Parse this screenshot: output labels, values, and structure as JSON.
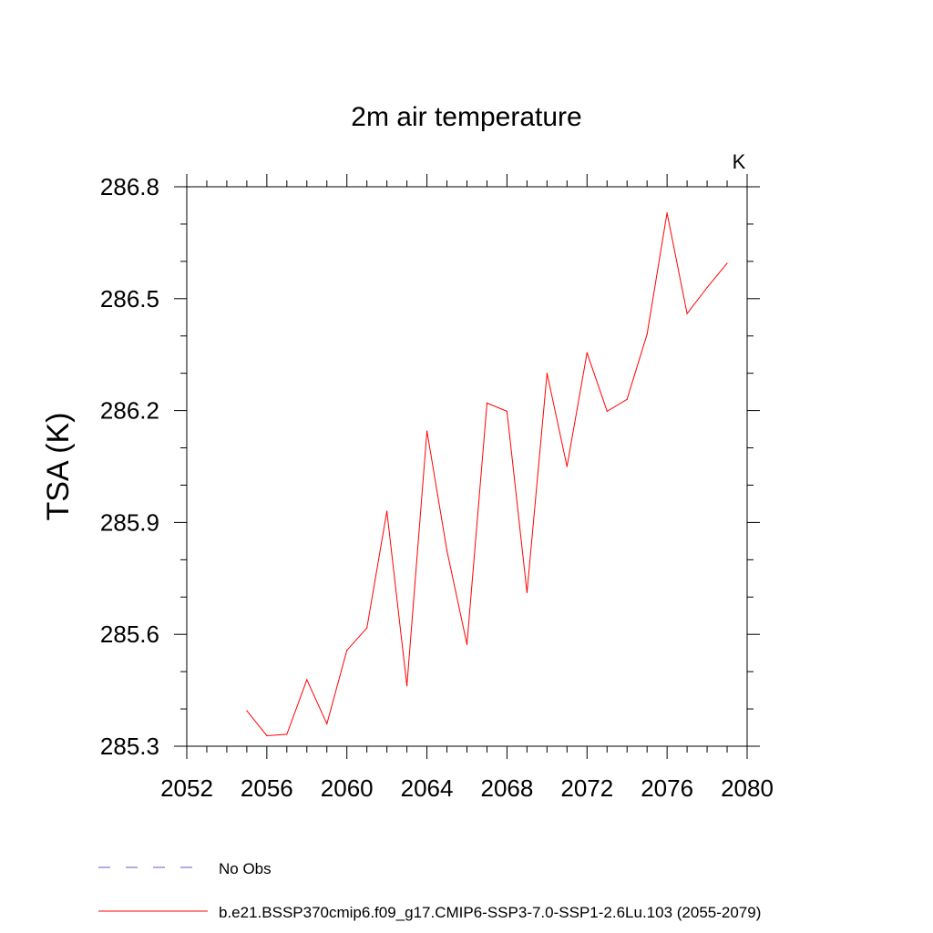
{
  "chart_data": {
    "type": "line",
    "title": "2m air temperature",
    "units": "K",
    "xlabel": "",
    "ylabel": "TSA  (K)",
    "xlim": [
      2052,
      2080
    ],
    "ylim": [
      285.3,
      286.8
    ],
    "x_ticks": [
      2052,
      2056,
      2060,
      2064,
      2068,
      2072,
      2076,
      2080
    ],
    "x_tick_labels": [
      "2052",
      "2056",
      "2060",
      "2064",
      "2068",
      "2072",
      "2076",
      "2080"
    ],
    "x_minor_step": 1,
    "y_ticks": [
      285.3,
      285.6,
      285.9,
      286.2,
      286.5,
      286.8
    ],
    "y_tick_labels": [
      "285.3",
      "285.6",
      "285.9",
      "286.2",
      "286.5",
      "286.8"
    ],
    "y_minor_step": 0.1,
    "grid": false,
    "series": [
      {
        "name": "b.e21.BSSP370cmip6.f09_g17.CMIP6-SSP3-7.0-SSP1-2.6Lu.103 (2055-2079)",
        "color": "#ff0000",
        "dash": "solid",
        "x": [
          2055,
          2056,
          2057,
          2058,
          2059,
          2060,
          2061,
          2062,
          2063,
          2064,
          2065,
          2066,
          2067,
          2068,
          2069,
          2070,
          2071,
          2072,
          2073,
          2074,
          2075,
          2076,
          2077,
          2078,
          2079
        ],
        "y": [
          285.395,
          285.328,
          285.332,
          285.478,
          285.36,
          285.557,
          285.617,
          285.93,
          285.462,
          286.145,
          285.825,
          285.573,
          286.22,
          286.198,
          285.712,
          286.3,
          286.05,
          286.355,
          286.198,
          286.23,
          286.405,
          286.73,
          286.46,
          286.53,
          286.595
        ]
      }
    ],
    "legend": [
      {
        "label": "No Obs",
        "color": "#6a5acd",
        "dash": "dashed"
      },
      {
        "label": "b.e21.BSSP370cmip6.f09_g17.CMIP6-SSP3-7.0-SSP1-2.6Lu.103 (2055-2079)",
        "color": "#ff0000",
        "dash": "solid"
      }
    ],
    "legend_position": "bottom-left"
  }
}
